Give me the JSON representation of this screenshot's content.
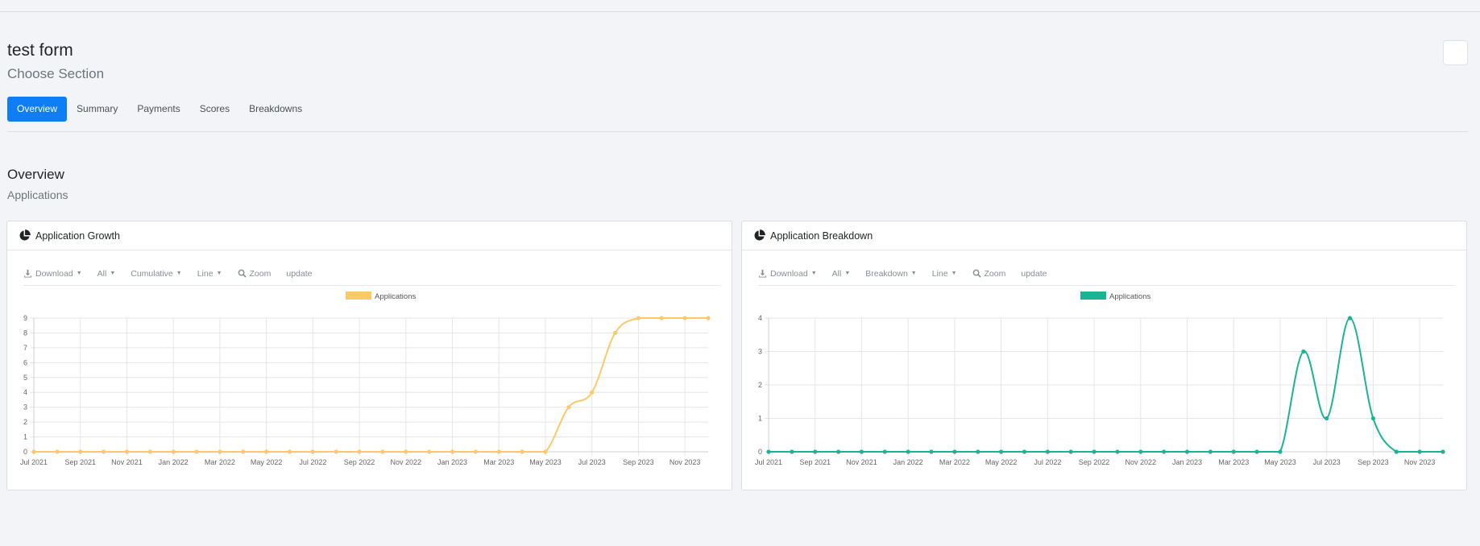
{
  "header": {
    "title": "test form",
    "subtitle": "Choose Section"
  },
  "tabs": [
    {
      "label": "Overview",
      "active": true
    },
    {
      "label": "Summary",
      "active": false
    },
    {
      "label": "Payments",
      "active": false
    },
    {
      "label": "Scores",
      "active": false
    },
    {
      "label": "Breakdowns",
      "active": false
    }
  ],
  "section": {
    "title": "Overview",
    "subtitle": "Applications"
  },
  "cards": [
    {
      "title": "Application Growth",
      "icon": "pie-chart-icon",
      "toolbar": {
        "download": "Download",
        "filter": "All",
        "mode": "Cumulative",
        "type": "Line",
        "zoom": "Zoom",
        "update": "update"
      }
    },
    {
      "title": "Application Breakdown",
      "icon": "pie-chart-icon",
      "toolbar": {
        "download": "Download",
        "filter": "All",
        "mode": "Breakdown",
        "type": "Line",
        "zoom": "Zoom",
        "update": "update"
      }
    }
  ],
  "chart_data": [
    {
      "type": "line",
      "title": "",
      "series": [
        {
          "name": "Applications",
          "color": "#fcc96a",
          "values": [
            0,
            0,
            0,
            0,
            0,
            0,
            0,
            0,
            0,
            0,
            0,
            0,
            0,
            0,
            0,
            0,
            0,
            0,
            0,
            0,
            0,
            0,
            0,
            3,
            4,
            8,
            9,
            9,
            9,
            9
          ]
        }
      ],
      "x": [
        "Jul 2021",
        "Aug 2021",
        "Sep 2021",
        "Oct 2021",
        "Nov 2021",
        "Dec 2021",
        "Jan 2022",
        "Feb 2022",
        "Mar 2022",
        "Apr 2022",
        "May 2022",
        "Jun 2022",
        "Jul 2022",
        "Aug 2022",
        "Sep 2022",
        "Oct 2022",
        "Nov 2022",
        "Dec 2022",
        "Jan 2023",
        "Feb 2023",
        "Mar 2023",
        "Apr 2023",
        "May 2023",
        "Jun 2023",
        "Jul 2023",
        "Aug 2023",
        "Sep 2023",
        "Oct 2023",
        "Nov 2023",
        "Dec 2023"
      ],
      "x_tick_labels": [
        "Jul 2021",
        "Sep 2021",
        "Nov 2021",
        "Jan 2022",
        "Mar 2022",
        "May 2022",
        "Jul 2022",
        "Sep 2022",
        "Nov 2022",
        "Jan 2023",
        "Mar 2023",
        "May 2023",
        "Jul 2023",
        "Sep 2023",
        "Nov 2023"
      ],
      "y_ticks": [
        0,
        1,
        2,
        3,
        4,
        5,
        6,
        7,
        8,
        9
      ],
      "ylim": [
        0,
        9
      ],
      "grid": true,
      "legend": "top-center"
    },
    {
      "type": "line",
      "title": "",
      "series": [
        {
          "name": "Applications",
          "color": "#1ab394",
          "values": [
            0,
            0,
            0,
            0,
            0,
            0,
            0,
            0,
            0,
            0,
            0,
            0,
            0,
            0,
            0,
            0,
            0,
            0,
            0,
            0,
            0,
            0,
            0,
            3,
            1,
            4,
            1,
            0,
            0,
            0
          ]
        }
      ],
      "x": [
        "Jul 2021",
        "Aug 2021",
        "Sep 2021",
        "Oct 2021",
        "Nov 2021",
        "Dec 2021",
        "Jan 2022",
        "Feb 2022",
        "Mar 2022",
        "Apr 2022",
        "May 2022",
        "Jun 2022",
        "Jul 2022",
        "Aug 2022",
        "Sep 2022",
        "Oct 2022",
        "Nov 2022",
        "Dec 2022",
        "Jan 2023",
        "Feb 2023",
        "Mar 2023",
        "Apr 2023",
        "May 2023",
        "Jun 2023",
        "Jul 2023",
        "Aug 2023",
        "Sep 2023",
        "Oct 2023",
        "Nov 2023",
        "Dec 2023"
      ],
      "x_tick_labels": [
        "Jul 2021",
        "Sep 2021",
        "Nov 2021",
        "Jan 2022",
        "Mar 2022",
        "May 2022",
        "Jul 2022",
        "Sep 2022",
        "Nov 2022",
        "Jan 2023",
        "Mar 2023",
        "May 2023",
        "Jul 2023",
        "Sep 2023",
        "Nov 2023"
      ],
      "y_ticks": [
        0,
        1,
        2,
        3,
        4
      ],
      "ylim": [
        0,
        4
      ],
      "grid": true,
      "legend": "top-center"
    }
  ]
}
